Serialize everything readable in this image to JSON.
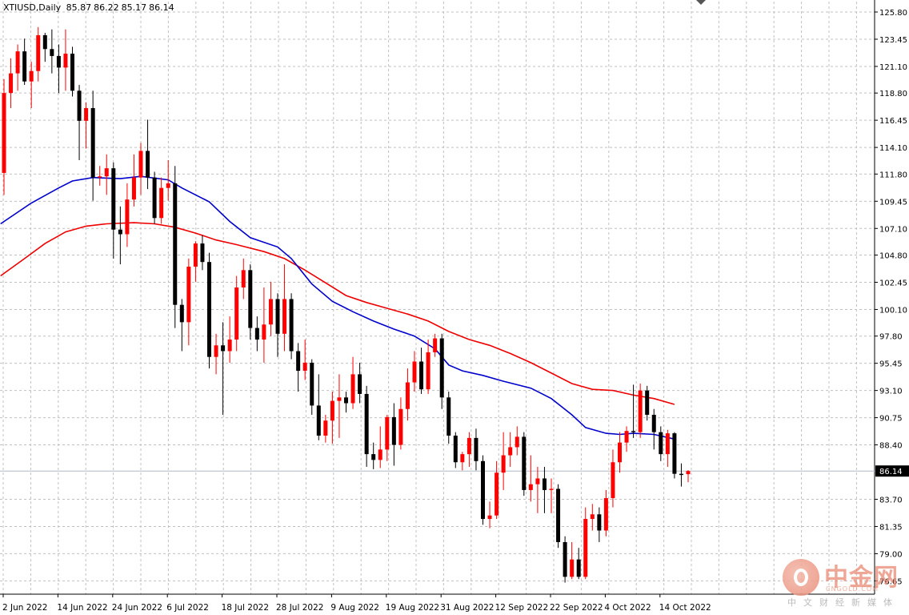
{
  "header": {
    "symbol": "XTIUSD,Daily",
    "open": "85.87",
    "high": "86.22",
    "low": "85.17",
    "close": "86.14"
  },
  "watermark": {
    "name": "中金网",
    "url": "CNGOLD.COM",
    "tagline": "中文财经新媒体"
  },
  "colors": {
    "bull": "#ff0000",
    "bear": "#000000",
    "ma_fast": "#0000cc",
    "ma_slow": "#ee0000",
    "grid": "#c0c0c0"
  },
  "chart_data": {
    "type": "candlestick",
    "symbol": "XTIUSD",
    "timeframe": "Daily",
    "y_range": [
      75.5,
      126.7
    ],
    "y_ticks": [
      "125.80",
      "123.45",
      "121.10",
      "118.80",
      "116.45",
      "114.10",
      "111.80",
      "109.45",
      "107.10",
      "104.80",
      "102.45",
      "100.10",
      "97.80",
      "95.45",
      "93.10",
      "90.75",
      "88.40",
      "86.14",
      "83.70",
      "81.35",
      "79.00",
      "76.65"
    ],
    "current_price": "86.14",
    "x_labels": [
      {
        "label": "2 Jun 2022",
        "bar": 0
      },
      {
        "label": "14 Jun 2022",
        "bar": 8
      },
      {
        "label": "24 Jun 2022",
        "bar": 16
      },
      {
        "label": "6 Jul 2022",
        "bar": 24
      },
      {
        "label": "18 Jul 2022",
        "bar": 32
      },
      {
        "label": "28 Jul 2022",
        "bar": 40
      },
      {
        "label": "9 Aug 2022",
        "bar": 48
      },
      {
        "label": "19 Aug 2022",
        "bar": 56
      },
      {
        "label": "31 Aug 2022",
        "bar": 64
      },
      {
        "label": "12 Sep 2022",
        "bar": 72
      },
      {
        "label": "22 Sep 2022",
        "bar": 80
      },
      {
        "label": "4 Oct 2022",
        "bar": 88
      },
      {
        "label": "14 Oct 2022",
        "bar": 96
      }
    ],
    "candles": [
      [
        111.9,
        120.0,
        110.0,
        118.8
      ],
      [
        118.8,
        121.8,
        117.5,
        120.5
      ],
      [
        120.5,
        123.0,
        119.0,
        122.4
      ],
      [
        122.4,
        123.5,
        119.5,
        119.8
      ],
      [
        119.8,
        121.5,
        117.5,
        120.7
      ],
      [
        120.7,
        124.5,
        119.8,
        123.8
      ],
      [
        123.8,
        124.0,
        121.5,
        122.6
      ],
      [
        122.6,
        124.3,
        120.5,
        122.0
      ],
      [
        122.0,
        123.0,
        118.8,
        121.0
      ],
      [
        121.0,
        124.3,
        119.0,
        122.2
      ],
      [
        122.2,
        122.8,
        118.5,
        119.0
      ],
      [
        119.0,
        119.5,
        113.0,
        116.4
      ],
      [
        116.4,
        118.0,
        114.0,
        117.5
      ],
      [
        117.5,
        119.0,
        109.5,
        111.5
      ],
      [
        111.5,
        112.5,
        110.8,
        111.6
      ],
      [
        111.6,
        113.5,
        110.0,
        112.3
      ],
      [
        112.3,
        112.8,
        104.5,
        107.0
      ],
      [
        107.0,
        109.0,
        104.0,
        106.6
      ],
      [
        106.6,
        111.0,
        105.5,
        109.6
      ],
      [
        109.6,
        113.5,
        109.0,
        111.5
      ],
      [
        111.5,
        114.5,
        110.0,
        113.8
      ],
      [
        113.8,
        116.5,
        110.5,
        111.5
      ],
      [
        111.5,
        112.0,
        107.5,
        108.0
      ],
      [
        108.0,
        111.5,
        107.5,
        110.6
      ],
      [
        110.6,
        113.0,
        109.5,
        111.0
      ],
      [
        111.0,
        112.5,
        98.5,
        100.5
      ],
      [
        100.5,
        101.0,
        96.5,
        99.0
      ],
      [
        99.0,
        104.5,
        97.0,
        103.8
      ],
      [
        103.8,
        106.0,
        102.5,
        105.8
      ],
      [
        105.8,
        106.5,
        103.5,
        104.2
      ],
      [
        104.2,
        105.0,
        95.0,
        96.0
      ],
      [
        96.0,
        98.0,
        94.5,
        97.0
      ],
      [
        97.0,
        99.0,
        91.0,
        96.5
      ],
      [
        96.5,
        99.5,
        95.5,
        97.5
      ],
      [
        97.5,
        103.0,
        96.5,
        102.0
      ],
      [
        102.0,
        104.5,
        101.0,
        103.5
      ],
      [
        103.5,
        104.0,
        97.5,
        98.5
      ],
      [
        98.5,
        99.5,
        96.5,
        97.5
      ],
      [
        97.5,
        102.0,
        95.5,
        98.8
      ],
      [
        98.8,
        102.5,
        97.8,
        101.0
      ],
      [
        101.0,
        101.5,
        96.0,
        98.0
      ],
      [
        98.0,
        104.0,
        96.5,
        101.0
      ],
      [
        101.0,
        101.5,
        95.8,
        96.5
      ],
      [
        96.5,
        97.2,
        93.0,
        94.8
      ],
      [
        94.8,
        97.5,
        94.0,
        95.5
      ],
      [
        95.5,
        95.8,
        91.0,
        91.8
      ],
      [
        91.8,
        94.5,
        88.8,
        89.2
      ],
      [
        89.2,
        91.0,
        88.6,
        90.5
      ],
      [
        90.5,
        93.0,
        88.5,
        92.2
      ],
      [
        92.2,
        94.5,
        89.0,
        92.5
      ],
      [
        92.5,
        93.0,
        91.2,
        92.0
      ],
      [
        92.0,
        96.0,
        91.5,
        94.5
      ],
      [
        94.5,
        95.5,
        92.0,
        92.8
      ],
      [
        92.8,
        93.5,
        86.5,
        87.6
      ],
      [
        87.6,
        88.6,
        86.3,
        87.1
      ],
      [
        87.1,
        90.0,
        86.4,
        88.0
      ],
      [
        88.0,
        91.0,
        87.0,
        90.8
      ],
      [
        90.8,
        92.0,
        86.6,
        88.4
      ],
      [
        88.4,
        92.5,
        88.0,
        91.5
      ],
      [
        91.5,
        95.0,
        90.5,
        93.8
      ],
      [
        93.8,
        96.5,
        93.0,
        95.6
      ],
      [
        95.6,
        96.8,
        92.8,
        93.2
      ],
      [
        93.2,
        97.5,
        92.8,
        96.4
      ],
      [
        96.4,
        98.0,
        96.0,
        97.6
      ],
      [
        97.6,
        98.0,
        91.5,
        92.5
      ],
      [
        92.5,
        93.0,
        88.5,
        89.2
      ],
      [
        89.2,
        89.5,
        86.4,
        86.9
      ],
      [
        86.9,
        87.8,
        86.2,
        87.6
      ],
      [
        87.6,
        89.5,
        86.5,
        89.0
      ],
      [
        89.0,
        89.8,
        86.2,
        87.0
      ],
      [
        87.0,
        87.5,
        81.5,
        82.0
      ],
      [
        82.0,
        83.5,
        81.2,
        82.3
      ],
      [
        82.3,
        87.0,
        82.0,
        86.0
      ],
      [
        86.0,
        89.5,
        84.5,
        87.5
      ],
      [
        87.5,
        89.5,
        86.5,
        88.2
      ],
      [
        88.2,
        90.0,
        87.5,
        89.1
      ],
      [
        89.1,
        89.5,
        84.0,
        84.5
      ],
      [
        84.5,
        87.5,
        83.5,
        85.0
      ],
      [
        85.0,
        86.5,
        82.5,
        85.5
      ],
      [
        85.5,
        86.5,
        82.5,
        84.5
      ],
      [
        84.5,
        85.5,
        82.5,
        84.6
      ],
      [
        84.6,
        85.0,
        79.5,
        80.0
      ],
      [
        80.0,
        80.5,
        76.5,
        77.0
      ],
      [
        77.0,
        80.0,
        76.8,
        78.5
      ],
      [
        78.5,
        79.5,
        76.8,
        77.0
      ],
      [
        77.0,
        83.0,
        76.8,
        82.0
      ],
      [
        82.0,
        83.3,
        81.0,
        82.4
      ],
      [
        82.4,
        83.0,
        80.0,
        81.0
      ],
      [
        81.0,
        84.5,
        80.5,
        83.8
      ],
      [
        83.8,
        88.0,
        83.0,
        86.9
      ],
      [
        86.9,
        89.5,
        86.0,
        88.6
      ],
      [
        88.6,
        90.0,
        87.8,
        89.6
      ],
      [
        89.6,
        93.6,
        89.0,
        89.5
      ],
      [
        89.5,
        93.7,
        89.0,
        93.1
      ],
      [
        93.1,
        93.5,
        90.5,
        91.0
      ],
      [
        91.0,
        91.5,
        88.0,
        89.5
      ],
      [
        89.5,
        90.0,
        87.0,
        87.6
      ],
      [
        87.6,
        89.7,
        86.5,
        89.4
      ],
      [
        89.4,
        89.5,
        85.5,
        85.9
      ],
      [
        85.9,
        86.8,
        84.8,
        85.8
      ],
      [
        85.87,
        86.22,
        85.17,
        86.14
      ]
    ],
    "ma_fast": {
      "color": "#0000cc",
      "points": [
        [
          -0.5,
          107.5
        ],
        [
          4,
          109.3
        ],
        [
          8,
          110.6
        ],
        [
          10,
          111.2
        ],
        [
          13,
          111.5
        ],
        [
          17,
          111.4
        ],
        [
          20,
          111.6
        ],
        [
          24,
          111.3
        ],
        [
          26,
          110.6
        ],
        [
          30,
          109.4
        ],
        [
          33,
          107.7
        ],
        [
          36,
          106.3
        ],
        [
          40,
          105.5
        ],
        [
          42,
          104.5
        ],
        [
          45,
          102.3
        ],
        [
          48,
          100.8
        ],
        [
          51,
          99.9
        ],
        [
          54,
          99.1
        ],
        [
          57,
          98.4
        ],
        [
          60,
          97.8
        ],
        [
          63,
          96.7
        ],
        [
          65,
          95.3
        ],
        [
          67,
          94.8
        ],
        [
          70,
          94.4
        ],
        [
          73,
          93.9
        ],
        [
          77,
          93.3
        ],
        [
          80,
          92.4
        ],
        [
          83,
          91.0
        ],
        [
          85,
          89.9
        ],
        [
          88,
          89.4
        ],
        [
          90,
          89.3
        ],
        [
          92,
          89.4
        ],
        [
          95,
          89.3
        ],
        [
          98,
          88.9
        ]
      ]
    },
    "ma_slow": {
      "color": "#ee0000",
      "points": [
        [
          -0.5,
          103.0
        ],
        [
          3,
          104.5
        ],
        [
          6,
          105.8
        ],
        [
          9,
          106.8
        ],
        [
          12,
          107.3
        ],
        [
          15,
          107.5
        ],
        [
          19,
          107.6
        ],
        [
          22,
          107.5
        ],
        [
          25,
          107.2
        ],
        [
          28,
          106.7
        ],
        [
          31,
          106.1
        ],
        [
          34,
          105.7
        ],
        [
          38,
          105.1
        ],
        [
          41,
          104.5
        ],
        [
          44,
          103.5
        ],
        [
          47,
          102.4
        ],
        [
          50,
          101.3
        ],
        [
          53,
          100.7
        ],
        [
          56,
          100.2
        ],
        [
          59,
          99.7
        ],
        [
          62,
          99.1
        ],
        [
          65,
          98.2
        ],
        [
          68,
          97.5
        ],
        [
          71,
          97.0
        ],
        [
          74,
          96.3
        ],
        [
          77,
          95.5
        ],
        [
          80,
          94.6
        ],
        [
          83,
          93.7
        ],
        [
          86,
          93.2
        ],
        [
          89,
          93.1
        ],
        [
          92,
          92.7
        ],
        [
          95,
          92.4
        ],
        [
          98,
          91.9
        ]
      ]
    }
  }
}
